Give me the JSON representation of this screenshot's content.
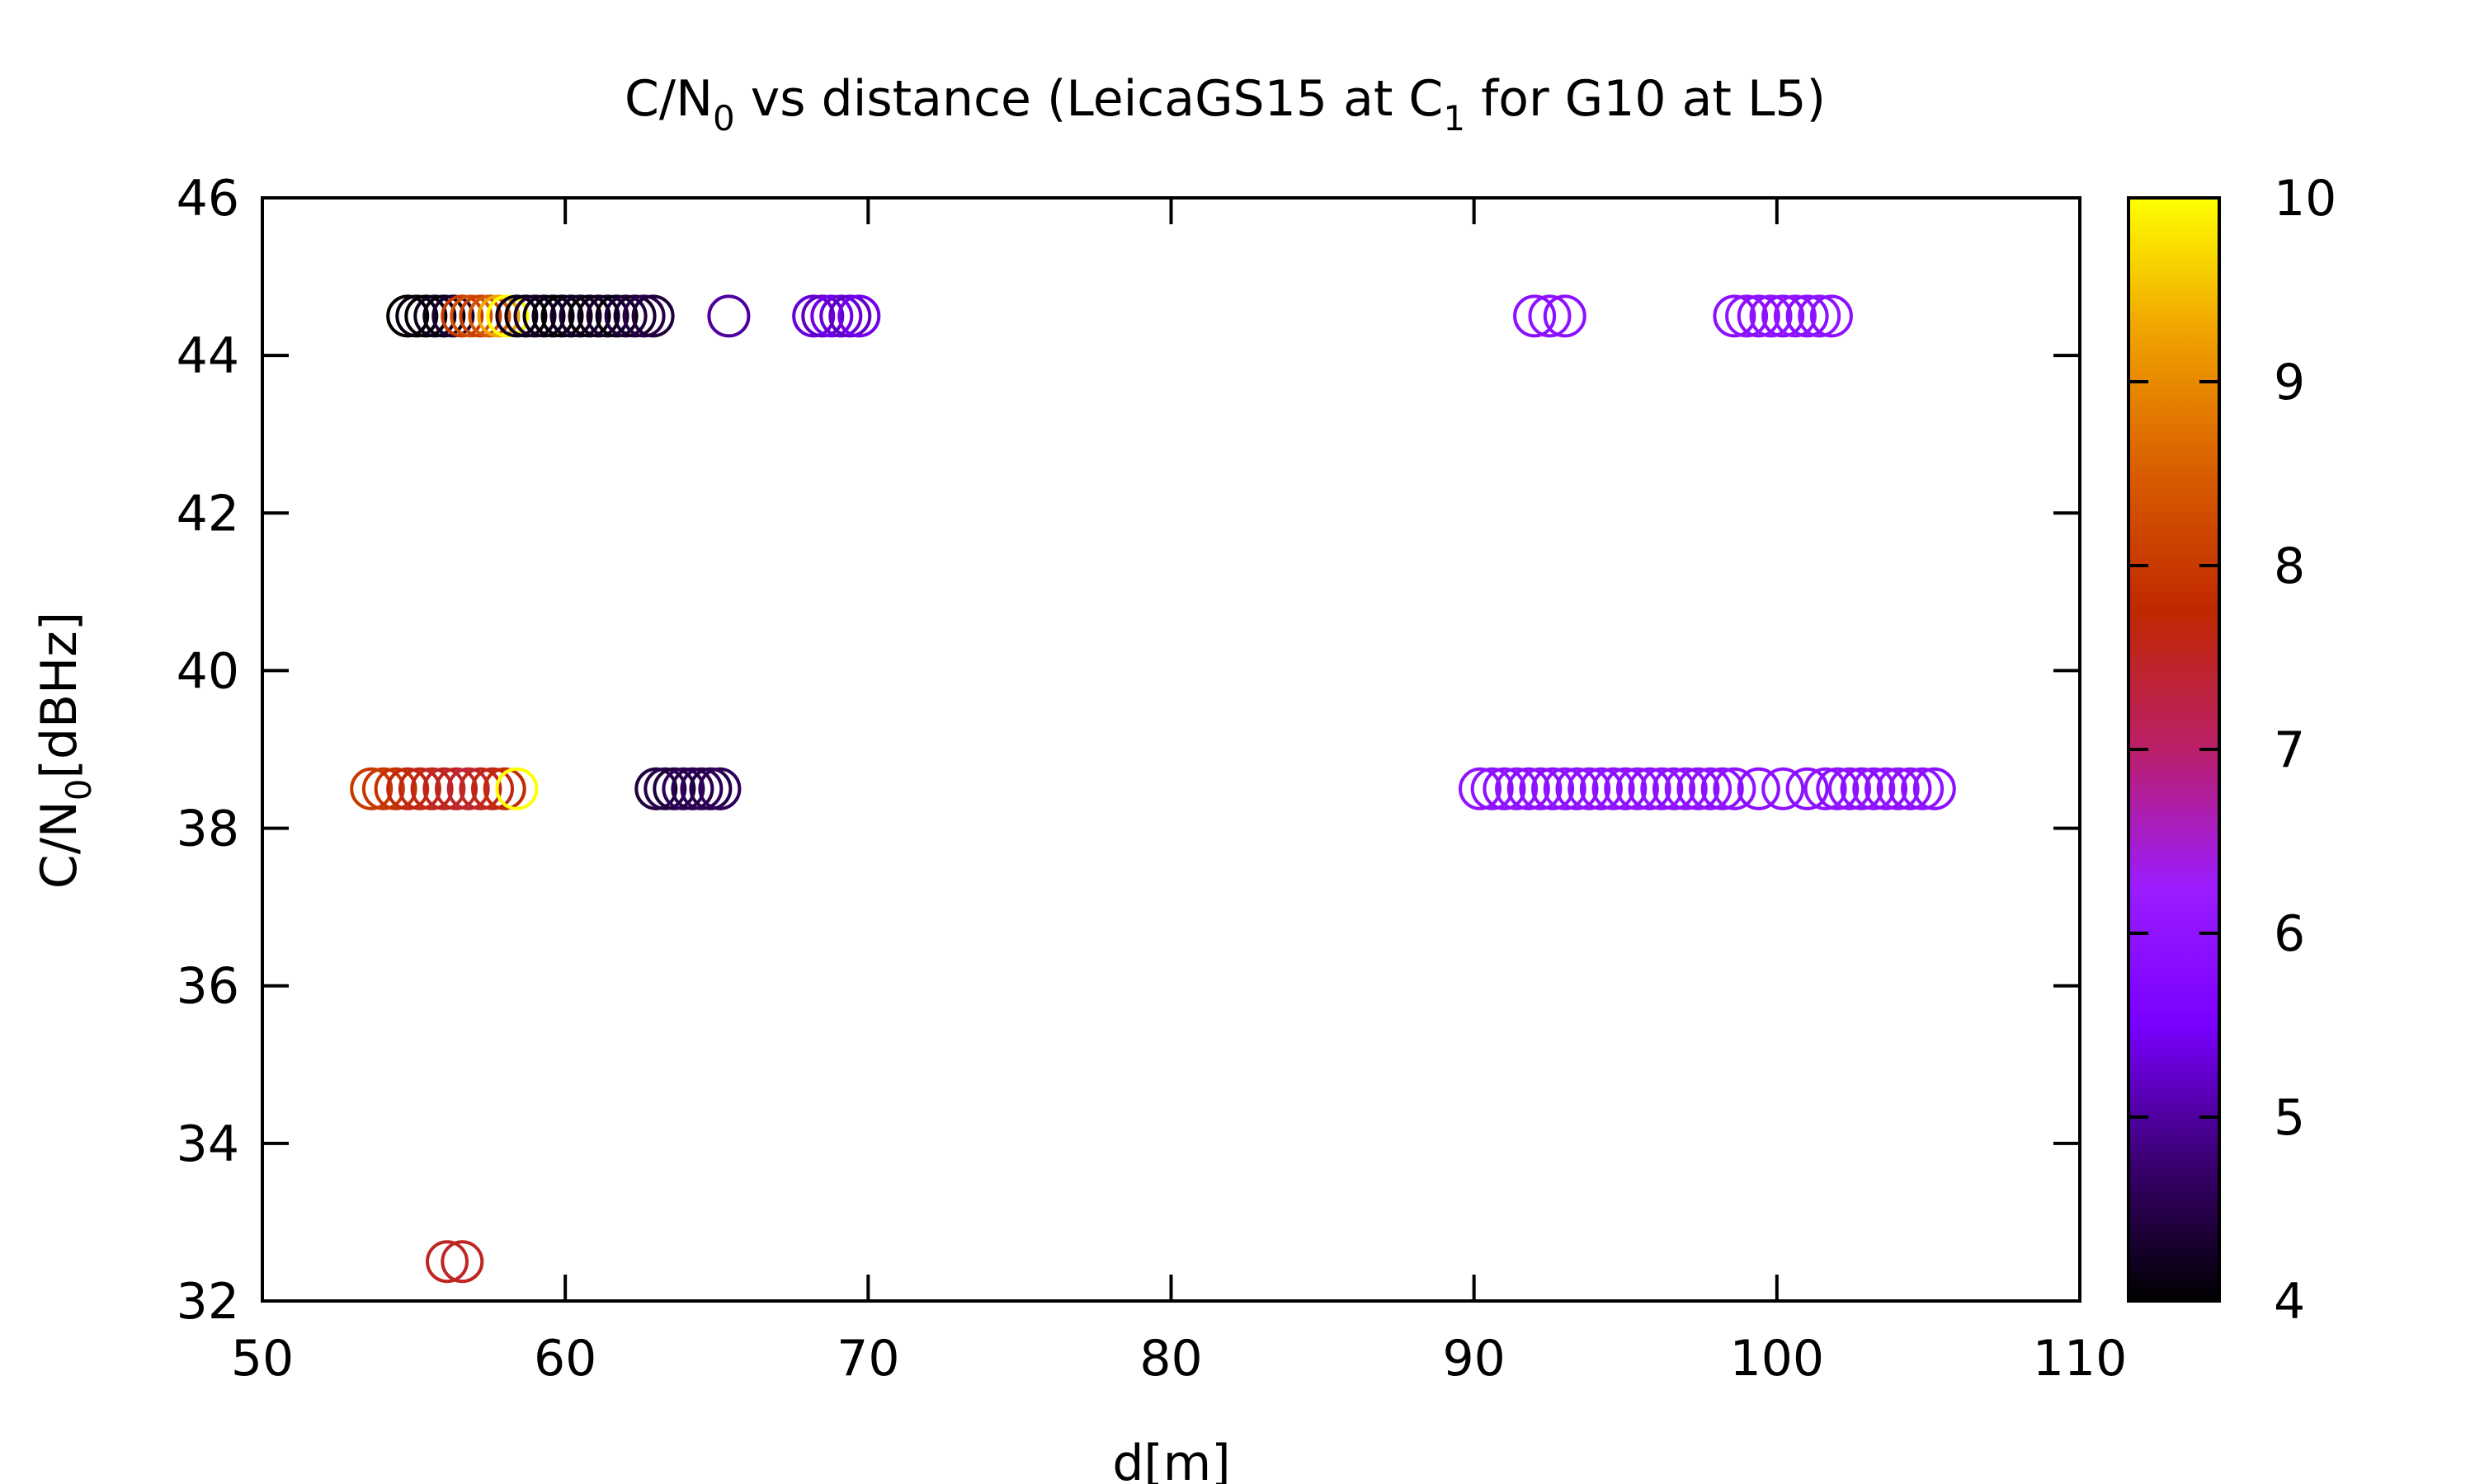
{
  "chart_data": {
    "type": "scatter",
    "title": {
      "main": "C/N",
      "sub0": "0",
      "rest1": " vs distance (LeicaGS15 at C",
      "sub1": "1",
      "rest2": " for G10 at L5)"
    },
    "xlabel": "d[m]",
    "ylabel": {
      "main": "C/N",
      "sub": "0",
      "rest": "[dBHz]"
    },
    "xlim": [
      50,
      110
    ],
    "ylim": [
      32,
      46
    ],
    "x_ticks": [
      "50",
      "60",
      "70",
      "80",
      "90",
      "100",
      "110"
    ],
    "y_ticks": [
      "32",
      "34",
      "36",
      "38",
      "40",
      "42",
      "44",
      "46"
    ],
    "colorbar": {
      "range": [
        4,
        10
      ],
      "ticks": [
        "4",
        "5",
        "6",
        "7",
        "8",
        "9",
        "10"
      ],
      "colors": [
        "#000000",
        "#3a0070",
        "#7a00ff",
        "#9b1cff",
        "#bb1f6a",
        "#c02800",
        "#d85c00",
        "#f0a000",
        "#ffff00"
      ]
    },
    "grid": false,
    "legend": "none",
    "series": [
      {
        "y": 44.5,
        "x": [
          54.8,
          55.1,
          55.4,
          55.7,
          56.0,
          56.3,
          56.6,
          56.9,
          57.2,
          57.5,
          57.8,
          58.1,
          58.4,
          58.7,
          59.0,
          59.3,
          59.6,
          59.9,
          60.2,
          60.5,
          60.8,
          61.1,
          61.4,
          61.7,
          62.0,
          62.3,
          62.6,
          62.9
        ],
        "c": [
          4.0,
          4.1,
          4.0,
          4.2,
          4.1,
          4.3,
          8.0,
          8.3,
          8.1,
          8.4,
          9.3,
          10.0,
          4.2,
          4.1,
          4.3,
          4.2,
          4.1,
          4.0,
          4.2,
          4.3,
          4.1,
          4.2,
          4.3,
          4.1,
          4.4,
          4.3,
          4.5,
          4.4
        ]
      },
      {
        "y": 44.5,
        "x": [
          65.4
        ],
        "c": [
          5.0
        ]
      },
      {
        "y": 44.5,
        "x": [
          68.2,
          68.5,
          68.8,
          69.1,
          69.4,
          69.7
        ],
        "c": [
          5.3,
          5.2,
          5.4,
          5.3,
          5.2,
          5.4
        ]
      },
      {
        "y": 44.5,
        "x": [
          92.0,
          92.5,
          93.0
        ],
        "c": [
          5.9,
          6.0,
          5.9
        ]
      },
      {
        "y": 44.5,
        "x": [
          98.6,
          99.0,
          99.4,
          99.8,
          100.2,
          100.6,
          101.0,
          101.4,
          101.8
        ],
        "c": [
          5.9,
          6.0,
          5.9,
          6.0,
          5.9,
          6.0,
          5.9,
          6.0,
          5.9
        ]
      },
      {
        "y": 38.5,
        "x": [
          53.6,
          54.0,
          54.4,
          54.8,
          55.2,
          55.6,
          56.0,
          56.4,
          56.8,
          57.2,
          57.6,
          58.0
        ],
        "c": [
          8.0,
          8.0,
          7.9,
          7.7,
          7.6,
          7.6,
          7.5,
          7.5,
          7.4,
          7.5,
          7.6,
          7.8
        ]
      },
      {
        "y": 38.5,
        "x": [
          58.4
        ],
        "c": [
          10.0
        ]
      },
      {
        "y": 38.5,
        "x": [
          63.0,
          63.3,
          63.6,
          63.9,
          64.2,
          64.5,
          64.8,
          65.1
        ],
        "c": [
          4.4,
          4.5,
          4.4,
          4.6,
          4.5,
          4.6,
          4.5,
          4.6
        ]
      },
      {
        "y": 38.5,
        "x": [
          90.2,
          90.6,
          91.0,
          91.4,
          91.8,
          92.2,
          92.6,
          93.0,
          93.4,
          93.8,
          94.2,
          94.6,
          95.0,
          95.4,
          95.8,
          96.2,
          96.6,
          97.0,
          97.4,
          97.8,
          98.2,
          98.6,
          99.4,
          100.2,
          101.0,
          101.6,
          102.0,
          102.4,
          102.8,
          103.2,
          103.6,
          104.0,
          104.4,
          104.8,
          105.2
        ],
        "c": [
          6.0,
          6.0,
          5.9,
          6.0,
          5.9,
          6.0,
          5.9,
          6.0,
          5.9,
          6.0,
          5.9,
          6.0,
          5.9,
          6.0,
          5.9,
          6.0,
          5.9,
          6.0,
          5.9,
          6.0,
          5.9,
          6.0,
          5.9,
          6.0,
          5.9,
          6.0,
          5.9,
          6.0,
          5.9,
          6.0,
          5.9,
          6.0,
          5.9,
          6.0,
          5.9
        ]
      },
      {
        "y": 32.5,
        "x": [
          56.1,
          56.6
        ],
        "c": [
          7.5,
          7.5
        ]
      }
    ]
  }
}
